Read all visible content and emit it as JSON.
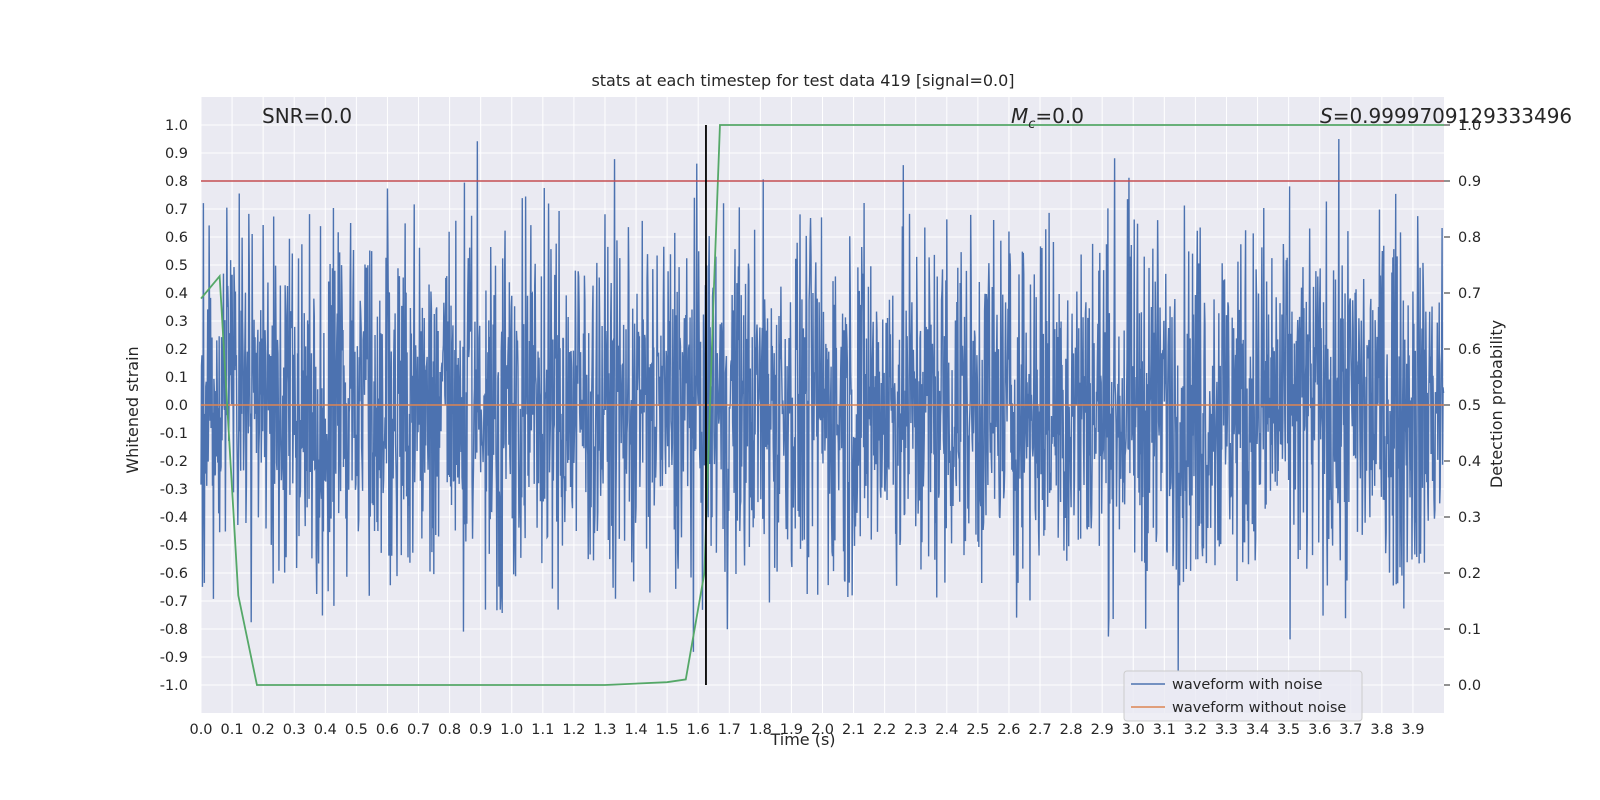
{
  "chart_data": {
    "type": "line",
    "title": "stats at each timestep for test data 419 [signal=0.0]",
    "xlabel": "Time (s)",
    "ylabel": "Whitened strain",
    "y2label": "Detection probability",
    "xlim": [
      0.0,
      4.0
    ],
    "ylim": [
      -1.1,
      1.1
    ],
    "y2lim": [
      -0.05,
      1.05
    ],
    "xticks": [
      "0.0",
      "0.1",
      "0.2",
      "0.3",
      "0.4",
      "0.5",
      "0.6",
      "0.7",
      "0.8",
      "0.9",
      "1.0",
      "1.1",
      "1.2",
      "1.3",
      "1.4",
      "1.5",
      "1.6",
      "1.7",
      "1.8",
      "1.9",
      "2.0",
      "2.1",
      "2.2",
      "2.3",
      "2.4",
      "2.5",
      "2.6",
      "2.7",
      "2.8",
      "2.9",
      "3.0",
      "3.1",
      "3.2",
      "3.3",
      "3.4",
      "3.5",
      "3.6",
      "3.7",
      "3.8",
      "3.9"
    ],
    "yticks": [
      "1.0",
      "0.9",
      "0.8",
      "0.7",
      "0.6",
      "0.5",
      "0.4",
      "0.3",
      "0.2",
      "0.1",
      "0.0",
      "-0.1",
      "-0.2",
      "-0.3",
      "-0.4",
      "-0.5",
      "-0.6",
      "-0.7",
      "-0.8",
      "-0.9",
      "-1.0"
    ],
    "y2ticks": [
      "1.0",
      "0.9",
      "0.8",
      "0.7",
      "0.6",
      "0.5",
      "0.4",
      "0.3",
      "0.2",
      "0.1",
      "0.0"
    ],
    "grid": true,
    "legend": {
      "position": "lower-right"
    },
    "series": [
      {
        "name": "waveform with noise",
        "axis": "left",
        "color": "#4c72b0",
        "note": "dense noise, range approx -0.95 to 0.95",
        "envelope": {
          "min": -0.95,
          "max": 0.95
        }
      },
      {
        "name": "waveform without noise",
        "axis": "left",
        "color": "#dd8452",
        "x": [
          0.0,
          4.0
        ],
        "y": [
          0.0,
          0.0
        ]
      },
      {
        "axis": "right",
        "color": "#55a868",
        "x": [
          0.0,
          0.06,
          0.12,
          0.18,
          0.2,
          0.4,
          0.8,
          1.2,
          1.3,
          1.5,
          1.56,
          1.62,
          1.65,
          1.67,
          1.68,
          2.0,
          3.0,
          4.0
        ],
        "y": [
          0.69,
          0.73,
          0.16,
          0.0,
          0.0,
          0.0,
          0.0,
          0.0,
          0.0,
          0.005,
          0.01,
          0.2,
          0.7,
          1.0,
          1.0,
          1.0,
          1.0,
          1.0
        ]
      },
      {
        "axis": "right",
        "color": "#c44e52",
        "type": "hline",
        "y": 0.9
      }
    ],
    "vline": {
      "x": 1.625,
      "color": "#000000"
    },
    "annotations": {
      "snr": "SNR=0.0",
      "mc_symbol": "M",
      "mc_sub": "c",
      "mc_rest": "=0.0",
      "s_symbol": "S",
      "s_rest": "=0.9999709129333496"
    },
    "colors": {
      "background": "#eaeaf2",
      "grid": "#ffffff"
    }
  }
}
